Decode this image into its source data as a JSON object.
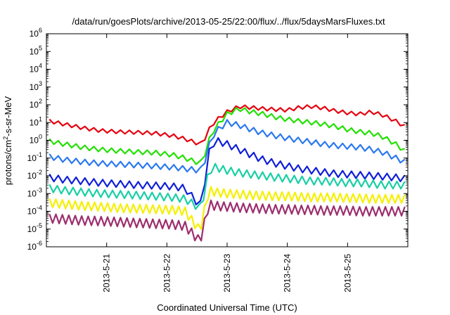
{
  "chart_data": {
    "type": "line",
    "title": "/data/run/goesPlots/archive/2013-05-25/22:00/flux/../flux/5daysMarsFluxes.txt",
    "xlabel": "Coordinated Universal Time (UTC)",
    "ylabel_parts": {
      "base": "protons/cm",
      "sup": "2",
      "rest": "-s-sr-MeV"
    },
    "yscale": "log",
    "ylim": [
      1e-06,
      1000000.0
    ],
    "xlim": [
      "2013-05-20",
      "2013-05-26"
    ],
    "x_ticks": [
      "2013-5-21",
      "2013-5-22",
      "2013-5-23",
      "2013-5-24",
      "2013-5-25"
    ],
    "y_ticks": [
      {
        "base": "10",
        "exp": "-6",
        "value": 1e-06
      },
      {
        "base": "10",
        "exp": "-5",
        "value": 1e-05
      },
      {
        "base": "10",
        "exp": "-4",
        "value": 0.0001
      },
      {
        "base": "10",
        "exp": "-3",
        "value": 0.001
      },
      {
        "base": "10",
        "exp": "-2",
        "value": 0.01
      },
      {
        "base": "10",
        "exp": "-1",
        "value": 0.1
      },
      {
        "base": "10",
        "exp": "0",
        "value": 1
      },
      {
        "base": "10",
        "exp": "1",
        "value": 10
      },
      {
        "base": "10",
        "exp": "2",
        "value": 100
      },
      {
        "base": "10",
        "exp": "3",
        "value": 1000
      },
      {
        "base": "10",
        "exp": "4",
        "value": 10000
      },
      {
        "base": "10",
        "exp": "5",
        "value": 100000
      },
      {
        "base": "10",
        "exp": "6",
        "value": 1000000
      }
    ],
    "grid": false,
    "legend": "none",
    "x_days": [
      0.05,
      0.3,
      0.6,
      0.9,
      1.2,
      1.5,
      1.8,
      2.1,
      2.3,
      2.55,
      2.6,
      2.7,
      2.8,
      3.0,
      3.2,
      3.4,
      3.6,
      3.8,
      4.0,
      4.2,
      4.4,
      4.6,
      4.8,
      5.0,
      5.2,
      5.4,
      5.6,
      5.8,
      5.95
    ],
    "series": [
      {
        "color": "#e6000f",
        "values": [
          12,
          8,
          5,
          3.5,
          3,
          2.8,
          2.5,
          1.8,
          1.2,
          0.6,
          0.8,
          4,
          12,
          40,
          80,
          70,
          60,
          55,
          50,
          70,
          80,
          65,
          45,
          35,
          30,
          40,
          25,
          12,
          6
        ]
      },
      {
        "color": "#22e000",
        "values": [
          0.9,
          0.6,
          0.4,
          0.3,
          0.25,
          0.22,
          0.2,
          0.15,
          0.1,
          0.05,
          0.08,
          1,
          5,
          30,
          60,
          40,
          30,
          20,
          15,
          12,
          10,
          8,
          6,
          4,
          3,
          2.5,
          1.5,
          0.6,
          0.25
        ]
      },
      {
        "color": "#2a78f0",
        "values": [
          0.12,
          0.08,
          0.06,
          0.05,
          0.045,
          0.04,
          0.035,
          0.03,
          0.025,
          0.02,
          0.03,
          0.5,
          3,
          10,
          7,
          4,
          2.5,
          1.8,
          1.3,
          1,
          0.8,
          0.6,
          0.5,
          0.45,
          0.4,
          0.3,
          0.2,
          0.1,
          0.06
        ]
      },
      {
        "color": "#0f1fd8",
        "values": [
          0.008,
          0.006,
          0.005,
          0.004,
          0.0035,
          0.003,
          0.0028,
          0.0025,
          0.002,
          0.0002,
          0.001,
          0.2,
          1,
          0.6,
          0.3,
          0.15,
          0.08,
          0.05,
          0.035,
          0.025,
          0.02,
          0.016,
          0.013,
          0.012,
          0.011,
          0.01,
          0.009,
          0.008,
          0.007
        ]
      },
      {
        "color": "#19cfa5",
        "values": [
          0.002,
          0.0015,
          0.0012,
          0.001,
          0.0009,
          0.0008,
          0.0007,
          0.0006,
          0.0005,
          0.00015,
          0.0005,
          0.02,
          0.03,
          0.02,
          0.015,
          0.012,
          0.01,
          0.008,
          0.007,
          0.006,
          0.005,
          0.005,
          0.0045,
          0.004,
          0.004,
          0.0035,
          0.003,
          0.003,
          0.003
        ]
      },
      {
        "color": "#f5f000",
        "values": [
          0.0003,
          0.00025,
          0.0002,
          0.00018,
          0.00015,
          0.00014,
          0.00013,
          0.00012,
          0.0001,
          8e-06,
          5e-05,
          0.0015,
          0.0012,
          0.001,
          0.0009,
          0.0008,
          0.00075,
          0.0007,
          0.0007,
          0.00065,
          0.0006,
          0.0006,
          0.0006,
          0.00055,
          0.00055,
          0.0005,
          0.0005,
          0.0005,
          0.0005
        ]
      },
      {
        "color": "#9c2e6e",
        "values": [
          4e-05,
          3.5e-05,
          3e-05,
          2.8e-05,
          2.5e-05,
          2.2e-05,
          2e-05,
          1.8e-05,
          1.5e-05,
          2e-06,
          1e-05,
          0.00025,
          0.0002,
          0.00018,
          0.00016,
          0.00015,
          0.00014,
          0.00013,
          0.00013,
          0.00012,
          0.00012,
          0.00011,
          0.00011,
          0.00011,
          0.0001,
          0.0001,
          0.0001,
          0.0001,
          0.0001
        ]
      }
    ]
  }
}
